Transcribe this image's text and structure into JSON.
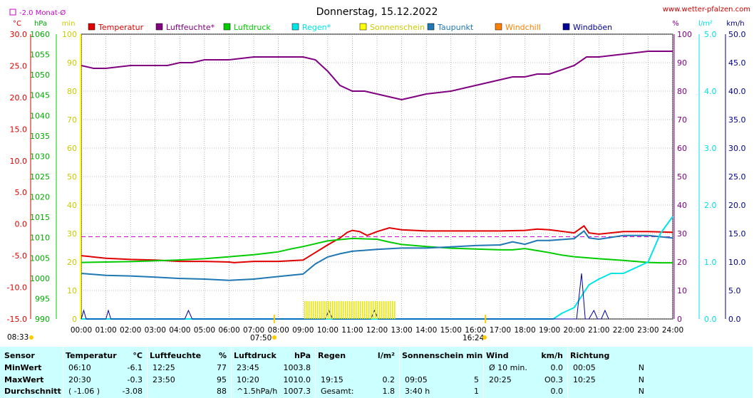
{
  "title": "Donnerstag, 15.12.2022",
  "site": "www.wetter-pfalzen.com",
  "month_avg_label": "-2.0 Monat-Ø",
  "units_left": [
    "°C",
    "hPa",
    "min"
  ],
  "units_right": [
    "%",
    "l/m²",
    "km/h"
  ],
  "sunrise_label": "08:33",
  "sunset_label": "16:24",
  "sun_marker_label": "07:50",
  "colors": {
    "temperatur": "#e00000",
    "luftfeuchte": "#800080",
    "luftdruck": "#00cc00",
    "regen": "#00e5e5",
    "sonnenschein": "#ffff00",
    "taupunkt": "#1f78b4",
    "windchill": "#ff8000",
    "windboeen": "#000099",
    "monthavg": "#cc00cc",
    "grid": "#808080",
    "plotbg": "#ffffff",
    "stats_bg": "#ccffff"
  },
  "chart_data": {
    "type": "line",
    "title": "Donnerstag, 15.12.2022",
    "x_unit": "hours",
    "x_ticks": [
      "00:00",
      "01:00",
      "02:00",
      "03:00",
      "04:00",
      "05:00",
      "06:00",
      "07:00",
      "08:00",
      "09:00",
      "10:00",
      "11:00",
      "12:00",
      "13:00",
      "14:00",
      "15:00",
      "16:00",
      "17:00",
      "18:00",
      "19:00",
      "20:00",
      "21:00",
      "22:00",
      "23:00",
      "24:00"
    ],
    "xlim": [
      0,
      24
    ],
    "axes": {
      "temperature_c": {
        "ylim": [
          -15,
          30
        ],
        "ticks": [
          "30.0",
          "25.0",
          "20.0",
          "15.0",
          "10.0",
          "5.0",
          "0.0",
          "-5.0",
          "-10.0",
          "-15.0"
        ]
      },
      "pressure_hpa": {
        "ylim": [
          990,
          1060
        ],
        "ticks": [
          "1060",
          "1055",
          "1050",
          "1045",
          "1040",
          "1035",
          "1030",
          "1025",
          "1020",
          "1015",
          "1010",
          "1005",
          "1000",
          "995",
          "990"
        ]
      },
      "sunshine_min": {
        "ylim": [
          0,
          100
        ],
        "ticks": [
          "100",
          "90",
          "80",
          "70",
          "60",
          "50",
          "40",
          "30",
          "20",
          "10",
          "0"
        ]
      },
      "humidity_pct": {
        "ylim": [
          0,
          100
        ],
        "ticks": [
          "100",
          "90",
          "80",
          "70",
          "60",
          "50",
          "40",
          "30",
          "20",
          "10",
          "0"
        ]
      },
      "rain_lm2": {
        "ylim": [
          0,
          5
        ],
        "ticks": [
          "5.0",
          "4.0",
          "3.0",
          "2.0",
          "1.0",
          "0.0"
        ]
      },
      "wind_kmh": {
        "ylim": [
          0,
          50
        ],
        "ticks": [
          "50.0",
          "45.0",
          "40.0",
          "35.0",
          "30.0",
          "25.0",
          "20.0",
          "15.0",
          "10.0",
          "5.0",
          "0.0"
        ]
      }
    },
    "month_avg_temp": -2.0,
    "legend": [
      "Temperatur",
      "Luftfeuchte*",
      "Luftdruck",
      "Regen*",
      "Sonnenschein",
      "Taupunkt",
      "Windchill",
      "Windböen"
    ],
    "series": [
      {
        "name": "Temperatur",
        "axis": "temperature_c",
        "x": [
          0,
          1,
          2,
          3,
          4,
          5,
          6,
          6.2,
          7,
          8,
          9,
          9.5,
          10,
          10.5,
          10.8,
          11,
          11.3,
          11.6,
          12,
          12.5,
          13,
          14,
          15,
          16,
          17,
          18,
          18.5,
          19,
          20,
          20.4,
          20.6,
          21,
          22,
          23,
          24
        ],
        "y": [
          -5.0,
          -5.4,
          -5.6,
          -5.7,
          -5.9,
          -5.9,
          -6.0,
          -6.1,
          -5.9,
          -5.9,
          -5.7,
          -4.5,
          -3.3,
          -2.2,
          -1.3,
          -1.0,
          -1.2,
          -1.8,
          -1.2,
          -0.6,
          -0.9,
          -1.1,
          -1.1,
          -1.1,
          -1.1,
          -1.0,
          -0.8,
          -0.9,
          -1.4,
          -0.3,
          -1.4,
          -1.6,
          -1.2,
          -1.2,
          -1.3
        ]
      },
      {
        "name": "Luftfeuchte*",
        "axis": "humidity_pct",
        "x": [
          0,
          0.5,
          1,
          2,
          3,
          3.5,
          4,
          4.5,
          5,
          6,
          7,
          7.5,
          8,
          9,
          9.5,
          10,
          10.5,
          11,
          11.5,
          12,
          12.5,
          13,
          13.5,
          14,
          15,
          15.5,
          16,
          17,
          17.5,
          18,
          18.5,
          19,
          20,
          20.5,
          21,
          22,
          23,
          23.5,
          24
        ],
        "y": [
          89,
          88,
          88,
          89,
          89,
          89,
          90,
          90,
          91,
          91,
          92,
          92,
          92,
          92,
          91,
          87,
          82,
          80,
          80,
          79,
          78,
          77,
          78,
          79,
          80,
          81,
          82,
          84,
          85,
          85,
          86,
          86,
          89,
          92,
          92,
          93,
          94,
          94,
          94
        ]
      },
      {
        "name": "Luftdruck",
        "axis": "pressure_hpa",
        "x": [
          0,
          1,
          2,
          3,
          4,
          5,
          6,
          7,
          8,
          8.5,
          9,
          9.5,
          10,
          11,
          12,
          12.5,
          13,
          14,
          15,
          16,
          17,
          17.5,
          18,
          18.5,
          19,
          19.5,
          20,
          21,
          22,
          23,
          23.5,
          24
        ],
        "y": [
          1003.9,
          1004.0,
          1004.1,
          1004.3,
          1004.5,
          1004.8,
          1005.3,
          1005.8,
          1006.5,
          1007.2,
          1007.8,
          1008.5,
          1009.2,
          1009.8,
          1009.6,
          1008.9,
          1008.3,
          1007.8,
          1007.4,
          1007.2,
          1007.0,
          1007.0,
          1007.3,
          1006.8,
          1006.3,
          1005.7,
          1005.3,
          1004.8,
          1004.4,
          1003.9,
          1003.8,
          1003.8
        ]
      },
      {
        "name": "Taupunkt",
        "axis": "temperature_c",
        "x": [
          0,
          1,
          2,
          3,
          4,
          5,
          6,
          7,
          8,
          9,
          9.5,
          10,
          10.5,
          11,
          12,
          13,
          14,
          15,
          16,
          17,
          17.5,
          18,
          18.5,
          19,
          20,
          20.4,
          20.6,
          21,
          22,
          23,
          24
        ],
        "y": [
          -7.8,
          -8.1,
          -8.2,
          -8.4,
          -8.6,
          -8.7,
          -8.9,
          -8.7,
          -8.3,
          -7.9,
          -6.3,
          -5.2,
          -4.7,
          -4.3,
          -4.0,
          -3.8,
          -3.8,
          -3.6,
          -3.4,
          -3.3,
          -2.8,
          -3.2,
          -2.6,
          -2.6,
          -2.3,
          -1.1,
          -2.2,
          -2.4,
          -1.8,
          -1.8,
          -2.2
        ]
      },
      {
        "name": "Regen*",
        "axis": "rain_lm2",
        "x": [
          0,
          19.15,
          19.5,
          20,
          20.3,
          20.6,
          21,
          21.5,
          22,
          22.5,
          23,
          23.5,
          24
        ],
        "y": [
          0,
          0,
          0.1,
          0.2,
          0.4,
          0.6,
          0.7,
          0.8,
          0.8,
          0.9,
          1.0,
          1.5,
          1.8
        ]
      },
      {
        "name": "Windböen",
        "axis": "wind_kmh",
        "x": [
          0,
          0.1,
          0.2,
          1.0,
          1.1,
          1.2,
          4.2,
          4.35,
          4.5,
          9.9,
          10.05,
          10.2,
          11.75,
          11.9,
          12.05,
          20.1,
          20.3,
          20.45,
          20.6,
          20.8,
          20.95,
          21.1,
          21.25,
          21.4
        ],
        "y": [
          0,
          1.5,
          0,
          0,
          1.5,
          0,
          0,
          1.5,
          0,
          0,
          1.5,
          0,
          0,
          1.5,
          0,
          0,
          8,
          0,
          0,
          1.5,
          0,
          0,
          1.5,
          0
        ]
      },
      {
        "name": "Sonnenschein",
        "axis": "sunshine_min",
        "kind": "bars",
        "x_range": [
          9.05,
          12.7
        ],
        "y": 5
      }
    ]
  },
  "stats": {
    "columns": [
      {
        "header": "Sensor",
        "unit": "",
        "rows": [
          "MinWert",
          "MaxWert",
          "Durchschnitt"
        ]
      },
      {
        "header": "Temperatur",
        "unit": "°C",
        "rows": [
          [
            "06:10",
            "-6.1"
          ],
          [
            "20:30",
            "-0.3"
          ],
          [
            "( -1.06 )",
            "-3.08"
          ]
        ]
      },
      {
        "header": "Luftfeuchte",
        "unit": "%",
        "rows": [
          [
            "12:25",
            "77"
          ],
          [
            "23:50",
            "95"
          ],
          [
            "",
            "88"
          ]
        ]
      },
      {
        "header": "Luftdruck",
        "unit": "hPa",
        "rows": [
          [
            "23:45",
            "1003.8"
          ],
          [
            "10:20",
            "1010.0"
          ],
          [
            "^1.5hPa/h",
            "1007.3"
          ]
        ]
      },
      {
        "header": "Regen",
        "unit": "l/m²",
        "rows": [
          [
            "",
            ""
          ],
          [
            "19:15",
            "0.2"
          ],
          [
            "Gesamt:",
            "1.8"
          ]
        ]
      },
      {
        "header": "Sonnenschein min",
        "unit": "",
        "rows": [
          [
            "",
            ""
          ],
          [
            "09:05",
            "5"
          ],
          [
            "3:40 h",
            "1"
          ]
        ]
      },
      {
        "header": "Wind",
        "unit": "km/h",
        "rows": [
          [
            "Ø 10 min.",
            "0.0"
          ],
          [
            "20:25",
            "0.3"
          ],
          [
            "",
            "0.0"
          ]
        ],
        "extra": "O"
      },
      {
        "header": "Richtung",
        "unit": "",
        "rows": [
          [
            "00:05",
            "N"
          ],
          [
            "10:25",
            "N"
          ],
          [
            "",
            "N"
          ]
        ]
      }
    ]
  }
}
